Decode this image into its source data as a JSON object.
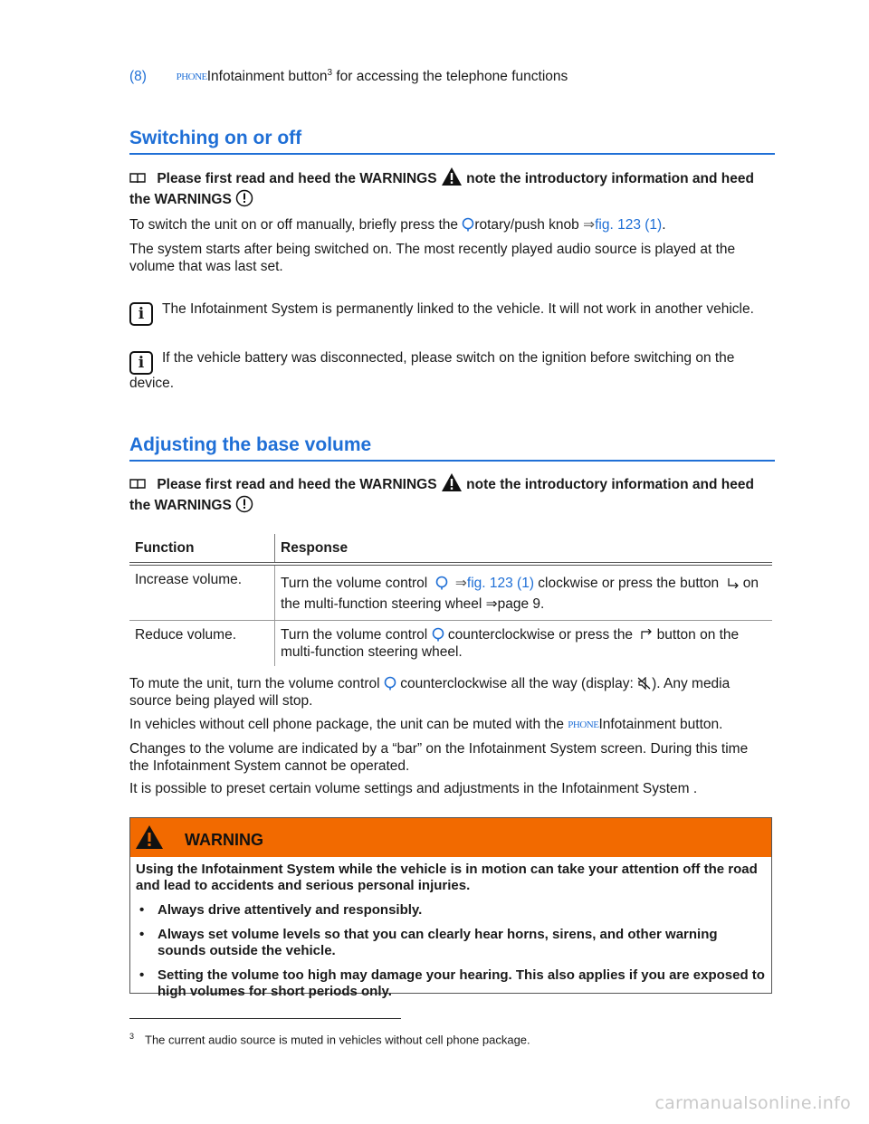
{
  "item8": {
    "num": "(8)",
    "glyph": "PHONE",
    "text_a": "Infotainment button",
    "sup": "3",
    "text_b": " for accessing the telephone functions"
  },
  "sec1": {
    "title": "Switching on or off",
    "warn_a": "Please first read and heed the WARNINGS",
    "warn_b": "note the introductory information and heed",
    "warn_c": "the WARNINGS",
    "p1_a": "To switch the unit on or off manually, briefly press the",
    "p1_b": "rotary/push knob",
    "p1_arrow": "⇒",
    "p1_link": "fig. 123 (1)",
    "p1_end": ".",
    "p2": "The system starts after being switched on. The most recently played audio source is played at the volume that was last set.",
    "note1": "The Infotainment System is permanently linked to the vehicle. It will not work in another vehicle.",
    "note2": "If the vehicle battery was disconnected, please switch on the ignition before switching on the device."
  },
  "sec2": {
    "title": "Adjusting the base volume",
    "warn_a": "Please first read and heed the WARNINGS",
    "warn_b": "note the introductory information and heed",
    "warn_c": "the WARNINGS",
    "table": {
      "headers": [
        "Function",
        "Response"
      ],
      "rows": [
        {
          "fn": "Increase volume.",
          "r_a": "Turn the volume control",
          "r_arrow": "⇒",
          "r_link": "fig. 123 (1)",
          "r_b": " clockwise or press the button",
          "r_c": " on the multi-function steering wheel",
          "r_d": " ⇒page 9."
        },
        {
          "fn": "Reduce volume.",
          "r_a": "Turn the volume control",
          "r_b": " counterclockwise or press the",
          "r_c": " button on the multi-function steering wheel."
        }
      ]
    },
    "p1_a": "To mute the unit, turn the volume control",
    "p1_b": " counterclockwise all the way (display: ",
    "p1_c": "). Any media source being played will stop.",
    "p2_a": "In vehicles without cell phone package, the unit can be muted with the",
    "p2_glyph": "PHONE",
    "p2_b": "Infotainment button.",
    "p3": "Changes to the volume are indicated by a “bar” on the Infotainment System screen. During this time the Infotainment System cannot be operated.",
    "p4": "It is possible to preset certain volume settings and adjustments in the Infotainment System ."
  },
  "warning": {
    "title": "WARNING",
    "intro": "Using the Infotainment System while the vehicle is in motion can take your attention off the road and lead to accidents and serious personal injuries.",
    "bullets": [
      "Always drive attentively and responsibly.",
      "Always set volume levels so that you can clearly hear horns, sirens, and other warning sounds outside the vehicle.",
      "Setting the volume too high may damage your hearing. This also applies if you are exposed to high volumes for short periods only."
    ],
    "color": "#f26a00"
  },
  "footnote": {
    "num": "3",
    "text": "The current audio source is muted in vehicles without cell phone package."
  },
  "watermark": "carmanualsonline.info"
}
